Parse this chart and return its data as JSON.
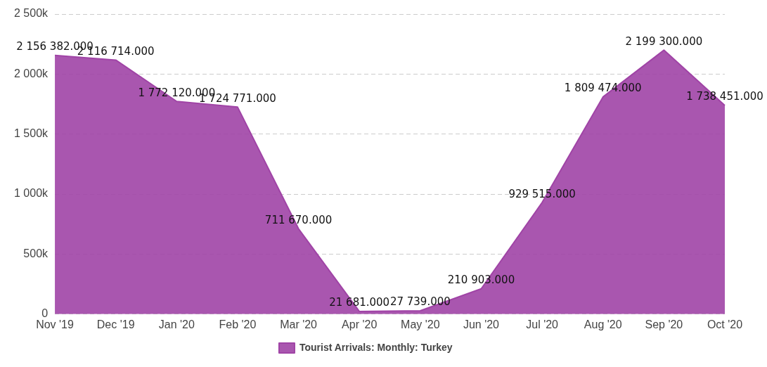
{
  "chart_data": {
    "type": "area",
    "categories": [
      "Nov '19",
      "Dec '19",
      "Jan '20",
      "Feb '20",
      "Mar '20",
      "Apr '20",
      "May '20",
      "Jun '20",
      "Jul '20",
      "Aug '20",
      "Sep '20",
      "Oct '20"
    ],
    "series": [
      {
        "name": "Tourist Arrivals: Monthly: Turkey",
        "color": "#a044a6",
        "values": [
          2156382,
          2116714,
          1772120,
          1724771,
          711670,
          21681,
          27739,
          210903,
          929515,
          1809474,
          2199300,
          1738451
        ],
        "value_labels": [
          "2 156 382.000",
          "2 116 714.000",
          "1 772 120.000",
          "1 724 771.000",
          "711 670.000",
          "21 681.000",
          "27 739.000",
          "210 903.000",
          "929 515.000",
          "1 809 474.000",
          "2 199 300.000",
          "1 738 451.000"
        ]
      }
    ],
    "ylim": [
      0,
      2500000
    ],
    "yticks": [
      {
        "value": 0,
        "label": "0"
      },
      {
        "value": 500000,
        "label": "500k"
      },
      {
        "value": 1000000,
        "label": "1 000k"
      },
      {
        "value": 1500000,
        "label": "1 500k"
      },
      {
        "value": 2000000,
        "label": "2 000k"
      },
      {
        "value": 2500000,
        "label": "2 500k"
      }
    ],
    "grid": "y",
    "legend": "bottom"
  }
}
